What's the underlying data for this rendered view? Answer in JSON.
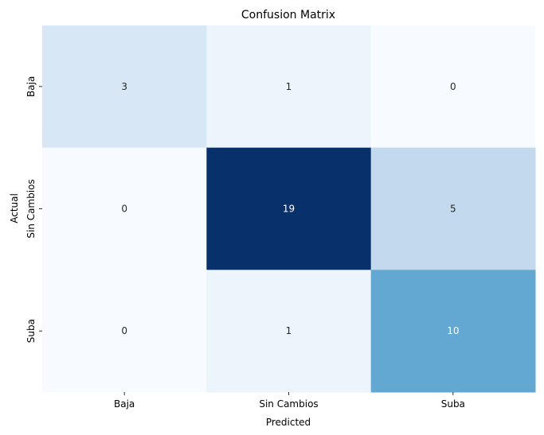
{
  "chart_data": {
    "type": "heatmap",
    "title": "Confusion Matrix",
    "xlabel": "Predicted",
    "ylabel": "Actual",
    "x_categories": [
      "Baja",
      "Sin Cambios",
      "Suba"
    ],
    "y_categories": [
      "Baja",
      "Sin Cambios",
      "Suba"
    ],
    "values": [
      [
        3,
        1,
        0
      ],
      [
        0,
        19,
        5
      ],
      [
        0,
        1,
        10
      ]
    ],
    "color_scale": "Blues",
    "color_range": [
      0,
      19
    ],
    "colorbar": false,
    "grid": false
  }
}
